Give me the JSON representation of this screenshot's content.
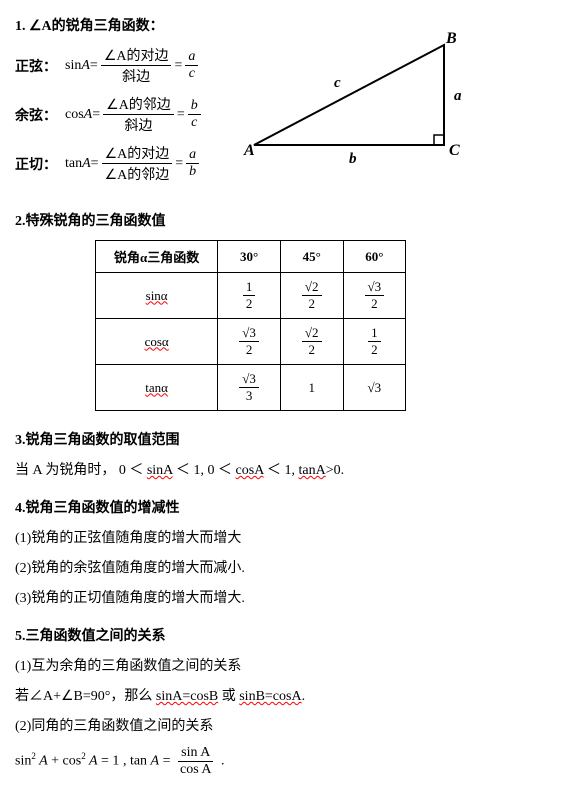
{
  "s1": {
    "title": "1. ∠A的锐角三角函数：",
    "sine_label": "正弦：",
    "sine_lhs": "sin",
    "sine_var": "A",
    "sine_eq": " = ",
    "sine_num1": "∠A的对边",
    "sine_den1": "斜边",
    "sine_num2": "a",
    "sine_den2": "c",
    "cos_label": "余弦：",
    "cos_lhs": "cos",
    "cos_var": "A",
    "cos_num1": "∠A的邻边",
    "cos_den1": "斜边",
    "cos_num2": "b",
    "cos_den2": "c",
    "tan_label": "正切：",
    "tan_lhs": "tan",
    "tan_var": "A",
    "tan_num1": "∠A的对边",
    "tan_den1": "∠A的邻边",
    "tan_num2": "a",
    "tan_den2": "b",
    "tri": {
      "A": "A",
      "B": "B",
      "C": "C",
      "a": "a",
      "b": "b",
      "c": "c"
    }
  },
  "s2": {
    "title": "2.特殊锐角的三角函数值",
    "header": [
      "锐角α三角函数",
      "30°",
      "45°",
      "60°"
    ],
    "rows": [
      {
        "name": "sinα",
        "v": [
          {
            "n": "1",
            "d": "2"
          },
          {
            "n": "√2",
            "d": "2"
          },
          {
            "n": "√3",
            "d": "2"
          }
        ]
      },
      {
        "name": "cosα",
        "v": [
          {
            "n": "√3",
            "d": "2"
          },
          {
            "n": "√2",
            "d": "2"
          },
          {
            "n": "1",
            "d": "2"
          }
        ]
      },
      {
        "name": "tanα",
        "v": [
          {
            "n": "√3",
            "d": "3"
          },
          {
            "plain": "1"
          },
          {
            "plain": "√3"
          }
        ]
      }
    ]
  },
  "s3": {
    "title": "3.锐角三角函数的取值范围",
    "line_a": "当 A 为锐角时， 0 ＜ ",
    "line_b": "sinA",
    "line_c": " ＜ 1, 0 ＜ ",
    "line_d": "cosA",
    "line_e": " ＜ 1, ",
    "line_f": "tanA",
    "line_g": ">0."
  },
  "s4": {
    "title": "4.锐角三角函数值的增减性",
    "i1": "(1)锐角的正弦值随角度的增大而增大",
    "i2": "(2)锐角的余弦值随角度的增大而减小.",
    "i3": "(3)锐角的正切值随角度的增大而增大."
  },
  "s5": {
    "title": "5.三角函数值之间的关系",
    "i1": "(1)互为余角的三角函数值之间的关系",
    "l2a": "若∠A+∠B=90°，那么 ",
    "l2b": "sinA=cosB",
    "l2c": " 或 ",
    "l2d": "sinB=cosA",
    "l2e": ".",
    "i3": "(2)同角的三角函数值之间的关系",
    "eq_a": "sin",
    "eq_sup": "2",
    "eq_b": " A",
    "eq_c": " + cos",
    "eq_d": " A",
    "eq_e": " = 1",
    "eq_f": " , tan ",
    "eq_g": "A",
    "eq_h": " = ",
    "eq_num": "sin A",
    "eq_den": "cos A",
    "eq_i": " ."
  }
}
